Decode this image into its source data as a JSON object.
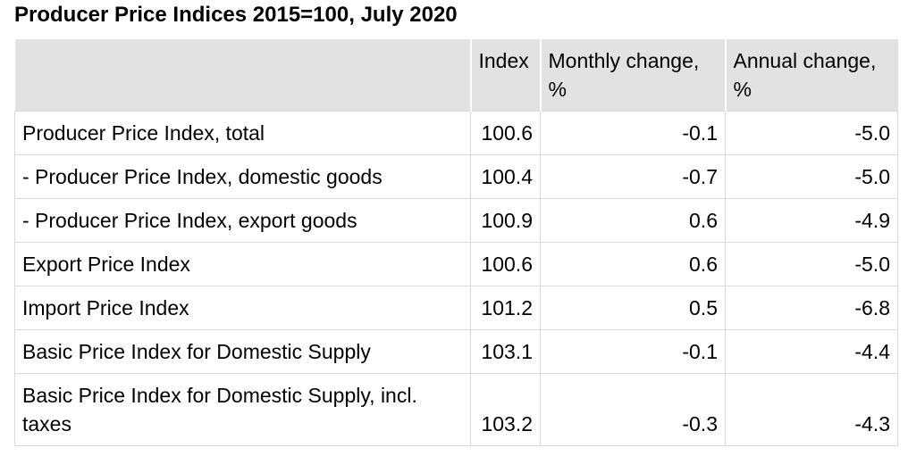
{
  "title": "Producer Price Indices 2015=100, July 2020",
  "colors": {
    "header-bg": "#e2e2e2",
    "row-border": "#d9d9d9",
    "header-separator": "#ffffff",
    "text": "#000000",
    "page-bg": "#ffffff"
  },
  "table": {
    "headers": [
      "",
      "Index",
      "Monthly change, %",
      "Annual change, %"
    ],
    "rows": [
      {
        "label": "Producer Price Index, total",
        "index": "100.6",
        "monthly": "-0.1",
        "annual": "-5.0"
      },
      {
        "label": "- Producer Price Index, domestic goods",
        "index": "100.4",
        "monthly": "-0.7",
        "annual": "-5.0"
      },
      {
        "label": "- Producer Price Index, export goods",
        "index": "100.9",
        "monthly": "0.6",
        "annual": "-4.9"
      },
      {
        "label": "Export Price Index",
        "index": "100.6",
        "monthly": "0.6",
        "annual": "-5.0"
      },
      {
        "label": "Import Price Index",
        "index": "101.2",
        "monthly": "0.5",
        "annual": "-6.8"
      },
      {
        "label": "Basic Price Index for Domestic Supply",
        "index": "103.1",
        "monthly": "-0.1",
        "annual": "-4.4"
      },
      {
        "label": "Basic Price Index for Domestic Supply, incl. taxes",
        "index": "103.2",
        "monthly": "-0.3",
        "annual": "-4.3"
      }
    ]
  },
  "chart_data": {
    "type": "table",
    "title": "Producer Price Indices 2015=100, July 2020",
    "base_period": "2015=100",
    "reference_month": "July 2020",
    "columns": [
      "",
      "Index",
      "Monthly change, %",
      "Annual change, %"
    ],
    "rows": [
      [
        "Producer Price Index, total",
        100.6,
        -0.1,
        -5.0
      ],
      [
        "- Producer Price Index, domestic goods",
        100.4,
        -0.7,
        -5.0
      ],
      [
        "- Producer Price Index, export goods",
        100.9,
        0.6,
        -4.9
      ],
      [
        "Export Price Index",
        100.6,
        0.6,
        -5.0
      ],
      [
        "Import Price Index",
        101.2,
        0.5,
        -6.8
      ],
      [
        "Basic Price Index for Domestic Supply",
        103.1,
        -0.1,
        -4.4
      ],
      [
        "Basic Price Index for Domestic Supply, incl. taxes",
        103.2,
        -0.3,
        -4.3
      ]
    ]
  }
}
